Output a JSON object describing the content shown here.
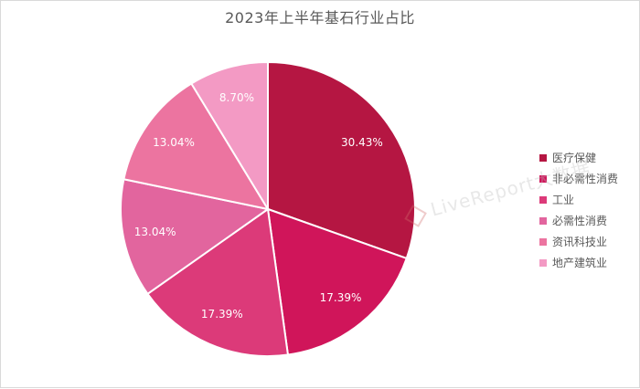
{
  "chart_data": {
    "type": "pie",
    "title": "2023年上半年基石行业占比",
    "labels": [
      "医疗保健",
      "非必需性消费",
      "工业",
      "必需性消费",
      "资讯科技业",
      "地产建筑业"
    ],
    "values": [
      30.43,
      17.39,
      17.39,
      13.04,
      13.04,
      8.7
    ],
    "value_labels": [
      "30.43%",
      "17.39%",
      "17.39%",
      "13.04%",
      "13.04%",
      "8.70%"
    ],
    "colors": [
      "#b51642",
      "#d0155a",
      "#dc3a79",
      "#e2659e",
      "#ec74a0",
      "#f39ac4"
    ],
    "legend": "right",
    "start": "12 o'clock",
    "direction": "clockwise"
  },
  "watermark": {
    "text": "LiveReport大数据"
  }
}
